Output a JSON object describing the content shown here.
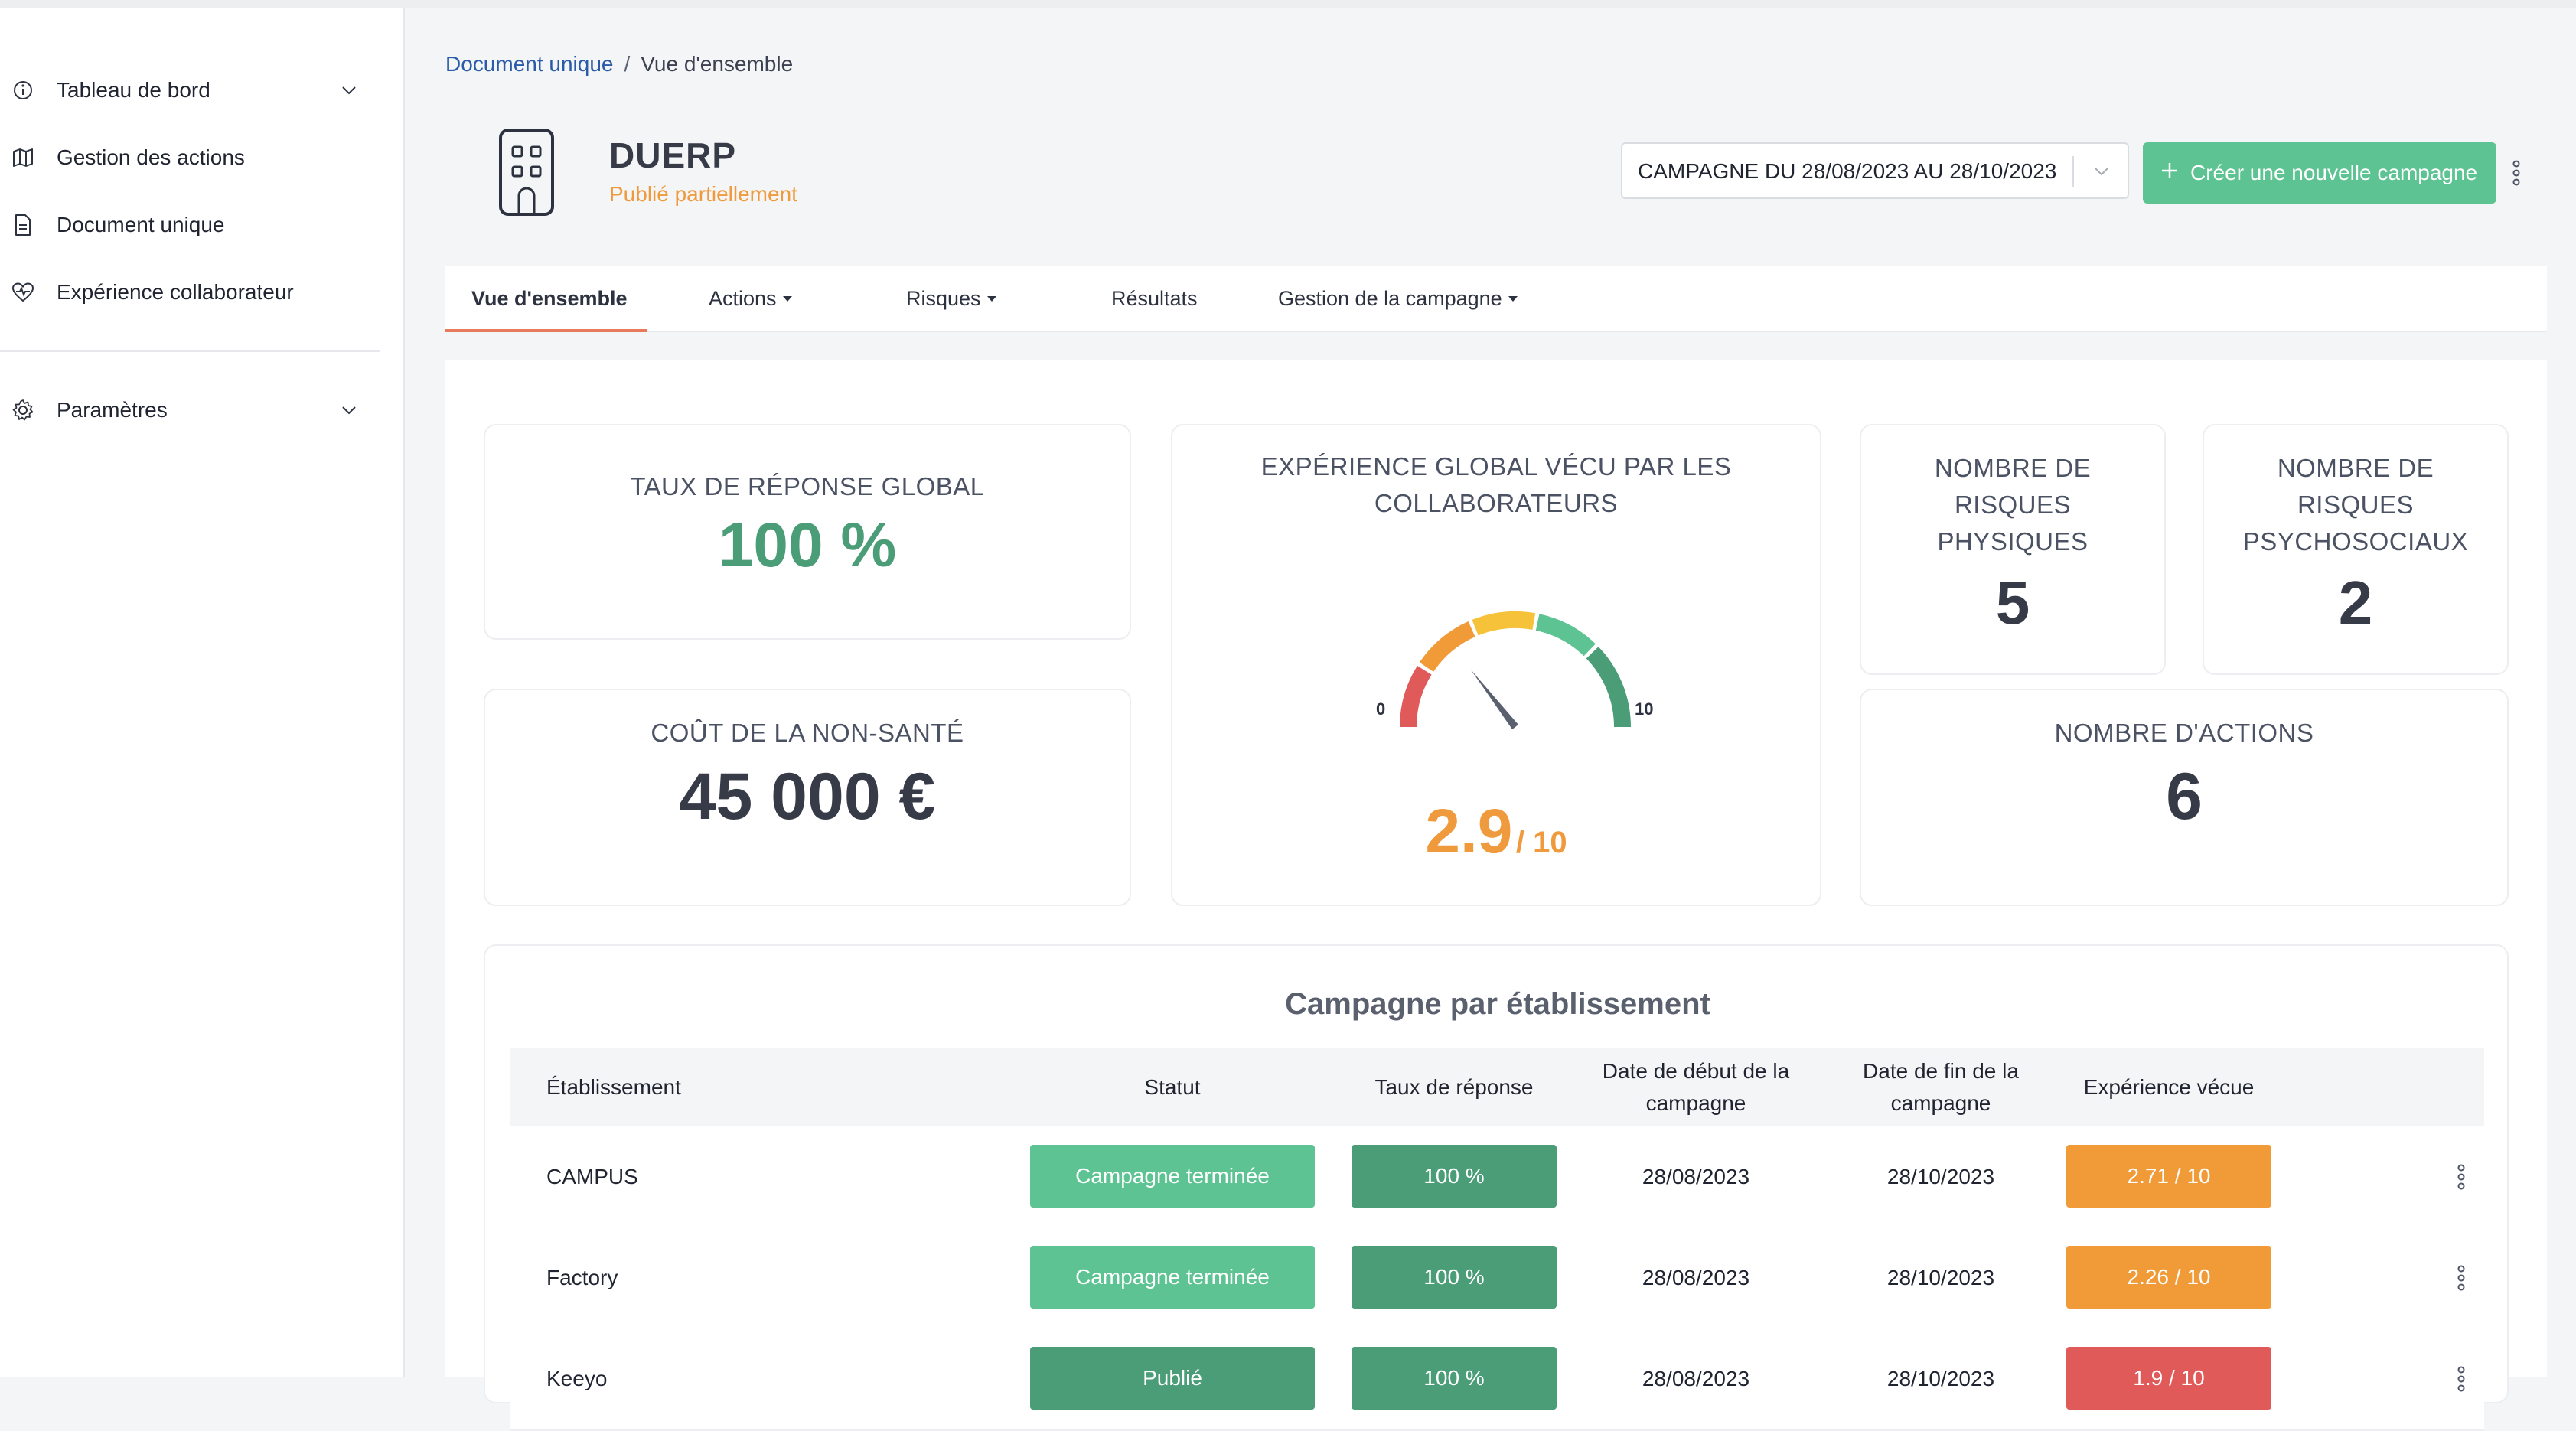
{
  "sidebar": {
    "items": [
      {
        "label": "Tableau de bord",
        "icon": "info-circle-icon",
        "has_chevron": true
      },
      {
        "label": "Gestion des actions",
        "icon": "map-icon",
        "has_chevron": false
      },
      {
        "label": "Document unique",
        "icon": "document-icon",
        "has_chevron": false
      },
      {
        "label": "Expérience collaborateur",
        "icon": "heart-pulse-icon",
        "has_chevron": false
      }
    ],
    "settings": {
      "label": "Paramètres",
      "icon": "gear-icon",
      "has_chevron": true
    }
  },
  "breadcrumb": {
    "parent": "Document unique",
    "separator": "/",
    "current": "Vue d'ensemble"
  },
  "header": {
    "title": "DUERP",
    "status": "Publié partiellement",
    "status_color": "#ef9a3c",
    "campaign_select": "CAMPAGNE DU 28/08/2023 AU 28/10/2023",
    "new_campaign_label": "Créer une nouvelle campagne",
    "accent": "#5ec393"
  },
  "tabs": [
    {
      "label": "Vue d'ensemble",
      "active": true,
      "dropdown": false
    },
    {
      "label": "Actions",
      "active": false,
      "dropdown": true
    },
    {
      "label": "Risques",
      "active": false,
      "dropdown": true
    },
    {
      "label": "Résultats",
      "active": false,
      "dropdown": false
    },
    {
      "label": "Gestion de la campagne",
      "active": false,
      "dropdown": true
    }
  ],
  "stats": {
    "response_rate": {
      "title": "TAUX DE RÉPONSE GLOBAL",
      "value": "100 %",
      "color": "#4a9d76"
    },
    "non_health_cost": {
      "title": "COÛT DE LA NON-SANTÉ",
      "value": "45 000 €"
    },
    "experience": {
      "title_line1": "EXPÉRIENCE GLOBAL VÉCU PAR LES",
      "title_line2": "COLLABORATEURS",
      "min_label": "0",
      "max_label": "10",
      "value": "2.9",
      "suffix": "/ 10",
      "gauge_value": 2.9,
      "gauge_max": 10
    },
    "physical_risks": {
      "title_lines": [
        "NOMBRE DE",
        "RISQUES",
        "PHYSIQUES"
      ],
      "value": "5"
    },
    "psychosocial_risks": {
      "title_lines": [
        "NOMBRE DE",
        "RISQUES",
        "PSYCHOSOCIAUX"
      ],
      "value": "2"
    },
    "actions": {
      "title": "NOMBRE D'ACTIONS",
      "value": "6"
    }
  },
  "table": {
    "title": "Campagne par établissement",
    "headers": {
      "establishment": "Établissement",
      "status": "Statut",
      "rate": "Taux de réponse",
      "start_line1": "Date de début de la",
      "start_line2": "campagne",
      "end_line1": "Date de fin de la",
      "end_line2": "campagne",
      "experience": "Expérience vécue"
    },
    "rows": [
      {
        "name": "CAMPUS",
        "status": "Campagne terminée",
        "status_color": "#5ec393",
        "rate": "100 %",
        "start": "28/08/2023",
        "end": "28/10/2023",
        "experience": "2.71 / 10",
        "exp_color": "#f09a38"
      },
      {
        "name": "Factory",
        "status": "Campagne terminée",
        "status_color": "#5ec393",
        "rate": "100 %",
        "start": "28/08/2023",
        "end": "28/10/2023",
        "experience": "2.26 / 10",
        "exp_color": "#f09a38"
      },
      {
        "name": "Keeyo",
        "status": "Publié",
        "status_color": "#4a9d76",
        "rate": "100 %",
        "start": "28/08/2023",
        "end": "28/10/2023",
        "experience": "1.9 / 10",
        "exp_color": "#e05a5a"
      }
    ]
  }
}
